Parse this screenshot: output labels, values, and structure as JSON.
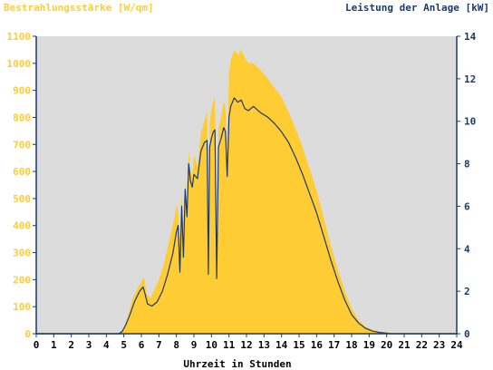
{
  "chart_data": {
    "type": "area",
    "title_left": "Bestrahlungsstärke [W/qm]",
    "title_right": "Leistung der Anlage [kW]",
    "xlabel": "Uhrzeit in Stunden",
    "xlim": [
      0,
      24
    ],
    "x_ticks": [
      "0",
      "1",
      "2",
      "3",
      "4",
      "5",
      "6",
      "7",
      "8",
      "9",
      "10",
      "11",
      "12",
      "13",
      "14",
      "15",
      "16",
      "17",
      "18",
      "19",
      "20",
      "21",
      "22",
      "23",
      "24"
    ],
    "ylim_left": [
      0,
      1100
    ],
    "y_ticks_left": [
      "0",
      "100",
      "200",
      "300",
      "400",
      "500",
      "600",
      "700",
      "800",
      "900",
      "1000",
      "1100"
    ],
    "ylim_right": [
      0,
      14
    ],
    "y_ticks_right": [
      "0",
      "2",
      "4",
      "6",
      "8",
      "10",
      "12",
      "14"
    ],
    "grid": false,
    "colors": {
      "plot_background": "#dcdcdc",
      "irradiance": "#ffcc33",
      "power": "#1a3a6e",
      "axis": "#1a3a6e",
      "left_text": "#ffcc33"
    },
    "series": [
      {
        "axis": "left",
        "style": "area",
        "points": [
          [
            0,
            0
          ],
          [
            4.6,
            0
          ],
          [
            4.8,
            5
          ],
          [
            5.0,
            20
          ],
          [
            5.2,
            60
          ],
          [
            5.5,
            130
          ],
          [
            5.8,
            170
          ],
          [
            6.0,
            190
          ],
          [
            6.15,
            210
          ],
          [
            6.3,
            150
          ],
          [
            6.5,
            130
          ],
          [
            6.8,
            170
          ],
          [
            7.0,
            200
          ],
          [
            7.3,
            260
          ],
          [
            7.6,
            350
          ],
          [
            7.9,
            430
          ],
          [
            8.0,
            480
          ],
          [
            8.1,
            450
          ],
          [
            8.2,
            300
          ],
          [
            8.3,
            520
          ],
          [
            8.4,
            320
          ],
          [
            8.5,
            560
          ],
          [
            8.6,
            450
          ],
          [
            8.7,
            680
          ],
          [
            8.8,
            610
          ],
          [
            8.9,
            580
          ],
          [
            9.0,
            660
          ],
          [
            9.2,
            620
          ],
          [
            9.4,
            740
          ],
          [
            9.6,
            790
          ],
          [
            9.75,
            820
          ],
          [
            9.82,
            260
          ],
          [
            9.9,
            780
          ],
          [
            10.0,
            830
          ],
          [
            10.1,
            860
          ],
          [
            10.2,
            870
          ],
          [
            10.3,
            250
          ],
          [
            10.4,
            760
          ],
          [
            10.55,
            800
          ],
          [
            10.7,
            860
          ],
          [
            10.8,
            830
          ],
          [
            10.9,
            620
          ],
          [
            11.0,
            970
          ],
          [
            11.1,
            1010
          ],
          [
            11.3,
            1050
          ],
          [
            11.5,
            1030
          ],
          [
            11.7,
            1050
          ],
          [
            11.9,
            1020
          ],
          [
            12.1,
            1000
          ],
          [
            12.4,
            1000
          ],
          [
            12.8,
            975
          ],
          [
            13.2,
            945
          ],
          [
            13.6,
            910
          ],
          [
            14.0,
            875
          ],
          [
            14.4,
            820
          ],
          [
            14.8,
            760
          ],
          [
            15.2,
            690
          ],
          [
            15.6,
            610
          ],
          [
            16.0,
            530
          ],
          [
            16.4,
            430
          ],
          [
            16.8,
            330
          ],
          [
            17.2,
            240
          ],
          [
            17.6,
            160
          ],
          [
            18.0,
            95
          ],
          [
            18.4,
            50
          ],
          [
            18.8,
            25
          ],
          [
            19.2,
            14
          ],
          [
            19.6,
            8
          ],
          [
            20.0,
            5
          ],
          [
            20.3,
            2
          ],
          [
            20.5,
            0
          ],
          [
            24,
            0
          ]
        ]
      },
      {
        "axis": "right",
        "style": "line",
        "points": [
          [
            0,
            0
          ],
          [
            4.7,
            0
          ],
          [
            4.9,
            0.1
          ],
          [
            5.1,
            0.4
          ],
          [
            5.3,
            0.8
          ],
          [
            5.6,
            1.5
          ],
          [
            5.9,
            2.0
          ],
          [
            6.1,
            2.2
          ],
          [
            6.2,
            1.9
          ],
          [
            6.35,
            1.4
          ],
          [
            6.6,
            1.3
          ],
          [
            6.9,
            1.5
          ],
          [
            7.2,
            2.0
          ],
          [
            7.5,
            2.8
          ],
          [
            7.8,
            3.8
          ],
          [
            8.0,
            4.8
          ],
          [
            8.1,
            5.1
          ],
          [
            8.2,
            2.9
          ],
          [
            8.3,
            6.0
          ],
          [
            8.4,
            3.6
          ],
          [
            8.5,
            6.8
          ],
          [
            8.6,
            5.5
          ],
          [
            8.7,
            8.0
          ],
          [
            8.8,
            7.2
          ],
          [
            8.9,
            6.9
          ],
          [
            9.0,
            7.5
          ],
          [
            9.2,
            7.3
          ],
          [
            9.4,
            8.6
          ],
          [
            9.6,
            9.0
          ],
          [
            9.75,
            9.1
          ],
          [
            9.82,
            2.8
          ],
          [
            9.9,
            8.8
          ],
          [
            10.0,
            9.2
          ],
          [
            10.1,
            9.5
          ],
          [
            10.2,
            9.6
          ],
          [
            10.3,
            2.6
          ],
          [
            10.4,
            8.8
          ],
          [
            10.55,
            9.2
          ],
          [
            10.7,
            9.7
          ],
          [
            10.8,
            9.5
          ],
          [
            10.9,
            7.4
          ],
          [
            11.0,
            10.2
          ],
          [
            11.1,
            10.7
          ],
          [
            11.3,
            11.1
          ],
          [
            11.5,
            10.9
          ],
          [
            11.7,
            11.0
          ],
          [
            11.9,
            10.6
          ],
          [
            12.1,
            10.5
          ],
          [
            12.4,
            10.7
          ],
          [
            12.8,
            10.4
          ],
          [
            13.2,
            10.2
          ],
          [
            13.6,
            9.9
          ],
          [
            14.0,
            9.5
          ],
          [
            14.4,
            9.0
          ],
          [
            14.8,
            8.3
          ],
          [
            15.2,
            7.5
          ],
          [
            15.6,
            6.6
          ],
          [
            16.0,
            5.7
          ],
          [
            16.4,
            4.6
          ],
          [
            16.8,
            3.5
          ],
          [
            17.2,
            2.5
          ],
          [
            17.6,
            1.6
          ],
          [
            18.0,
            0.9
          ],
          [
            18.4,
            0.5
          ],
          [
            18.8,
            0.25
          ],
          [
            19.2,
            0.12
          ],
          [
            19.6,
            0.06
          ],
          [
            20.0,
            0.02
          ],
          [
            20.2,
            0
          ],
          [
            24,
            0
          ]
        ]
      }
    ]
  }
}
